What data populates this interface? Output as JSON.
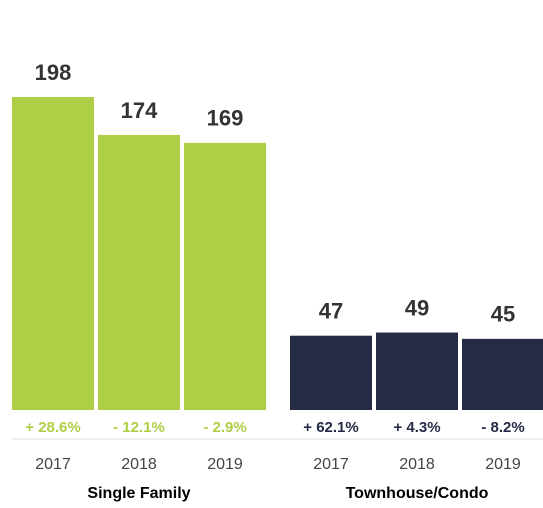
{
  "chart_data": {
    "type": "bar",
    "groups": [
      {
        "name": "Single Family",
        "color": "#aecf45",
        "categories": [
          "2017",
          "2018",
          "2019"
        ],
        "values": [
          198,
          174,
          169
        ],
        "changes": [
          "+ 28.6%",
          "- 12.1%",
          "- 2.9%"
        ]
      },
      {
        "name": "Townhouse/Condo",
        "color": "#252b45",
        "categories": [
          "2017",
          "2018",
          "2019"
        ],
        "values": [
          47,
          49,
          45
        ],
        "changes": [
          "+ 62.1%",
          "+ 4.3%",
          "- 8.2%"
        ]
      }
    ]
  }
}
